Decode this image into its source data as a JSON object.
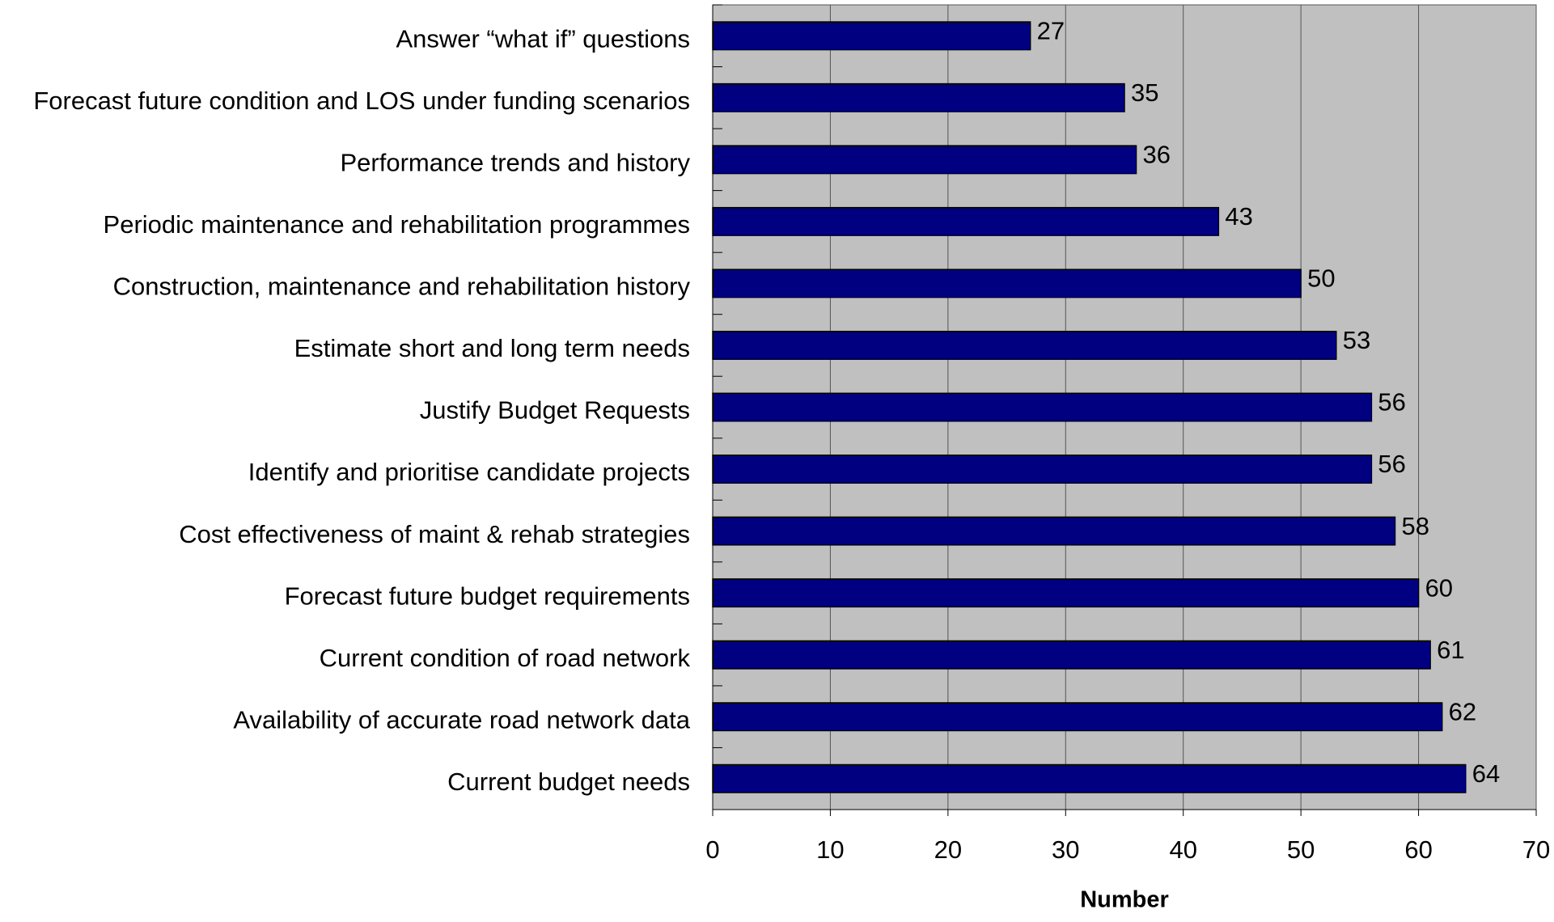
{
  "chart_data": {
    "type": "bar",
    "orientation": "horizontal",
    "x_label": "Number",
    "categories": [
      "Answer “what if” questions",
      "Forecast future condition and LOS under funding scenarios",
      "Performance trends and history",
      "Periodic maintenance and rehabilitation programmes",
      "Construction, maintenance and rehabilitation history",
      "Estimate short and long term needs",
      "Justify Budget Requests",
      "Identify and prioritise candidate projects",
      "Cost effectiveness of maint & rehab strategies",
      "Forecast future budget requirements",
      "Current condition of road network",
      "Availability of accurate road network data",
      "Current budget needs"
    ],
    "values": [
      27,
      35,
      36,
      43,
      50,
      53,
      56,
      56,
      58,
      60,
      61,
      62,
      64
    ],
    "color": "#000080",
    "plot_background": "#c0c0c0",
    "xlim": [
      0,
      70
    ],
    "xticks": [
      0,
      10,
      20,
      30,
      40,
      50,
      60,
      70
    ],
    "grid": true
  }
}
